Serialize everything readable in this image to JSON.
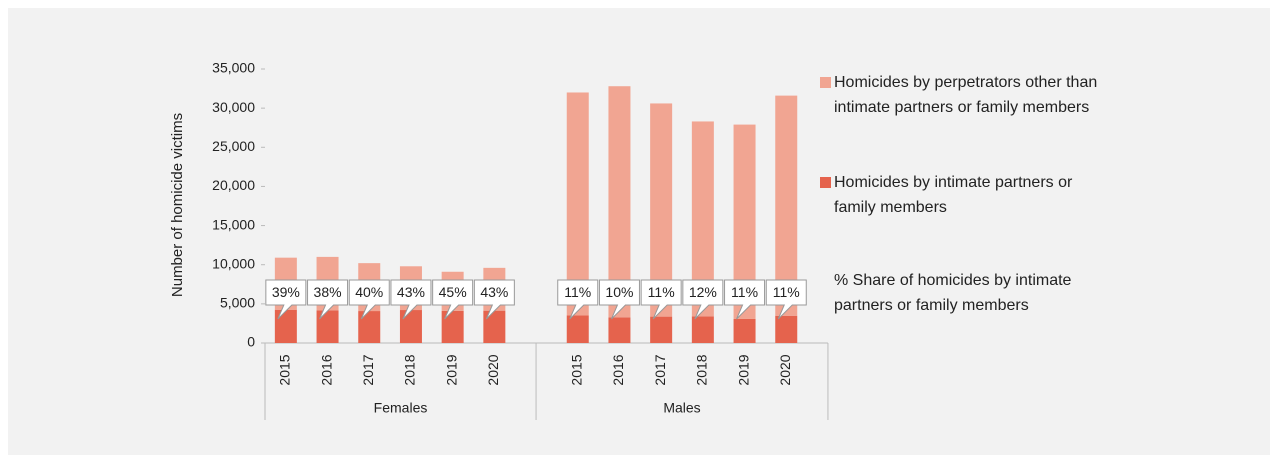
{
  "chart_data": {
    "type": "bar",
    "stacked": true,
    "y_label": "Number of homicide victims",
    "groups": [
      {
        "name": "Females",
        "categories": [
          "2015",
          "2016",
          "2017",
          "2018",
          "2019",
          "2020"
        ]
      },
      {
        "name": "Males",
        "categories": [
          "2015",
          "2016",
          "2017",
          "2018",
          "2019",
          "2020"
        ]
      }
    ],
    "series": [
      {
        "name": "Homicides by intimate partners or family members",
        "color": "#e5634d",
        "values": [
          4250,
          4180,
          4080,
          4210,
          4100,
          4130,
          3520,
          3280,
          3370,
          3400,
          3070,
          3480
        ]
      },
      {
        "name": "Homicides by perpetrators other than intimate partners or family members",
        "color": "#f1a592",
        "values": [
          6650,
          6820,
          6120,
          5590,
          5000,
          5470,
          28480,
          29520,
          27230,
          24900,
          24830,
          28120
        ]
      }
    ],
    "share": {
      "name": "% Share of homicides by intimate partners or family members",
      "values": [
        39,
        38,
        40,
        43,
        45,
        43,
        11,
        10,
        11,
        12,
        11,
        11
      ],
      "value_labels": [
        "39%",
        "38%",
        "40%",
        "43%",
        "45%",
        "43%",
        "11%",
        "10%",
        "11%",
        "12%",
        "11%",
        "11%"
      ]
    },
    "ylim": [
      0,
      35000
    ],
    "yticks": [
      0,
      {
        "value": 5000,
        "label": "5,000"
      },
      {
        "value": 10000,
        "label": "10,000"
      },
      {
        "value": 15000,
        "label": "15,000"
      },
      {
        "value": 20000,
        "label": "20,000"
      },
      {
        "value": 25000,
        "label": "25,000"
      },
      {
        "value": 30000,
        "label": "30,000"
      },
      {
        "value": 35000,
        "label": "35,000"
      }
    ],
    "grid": false,
    "legend": "right"
  }
}
